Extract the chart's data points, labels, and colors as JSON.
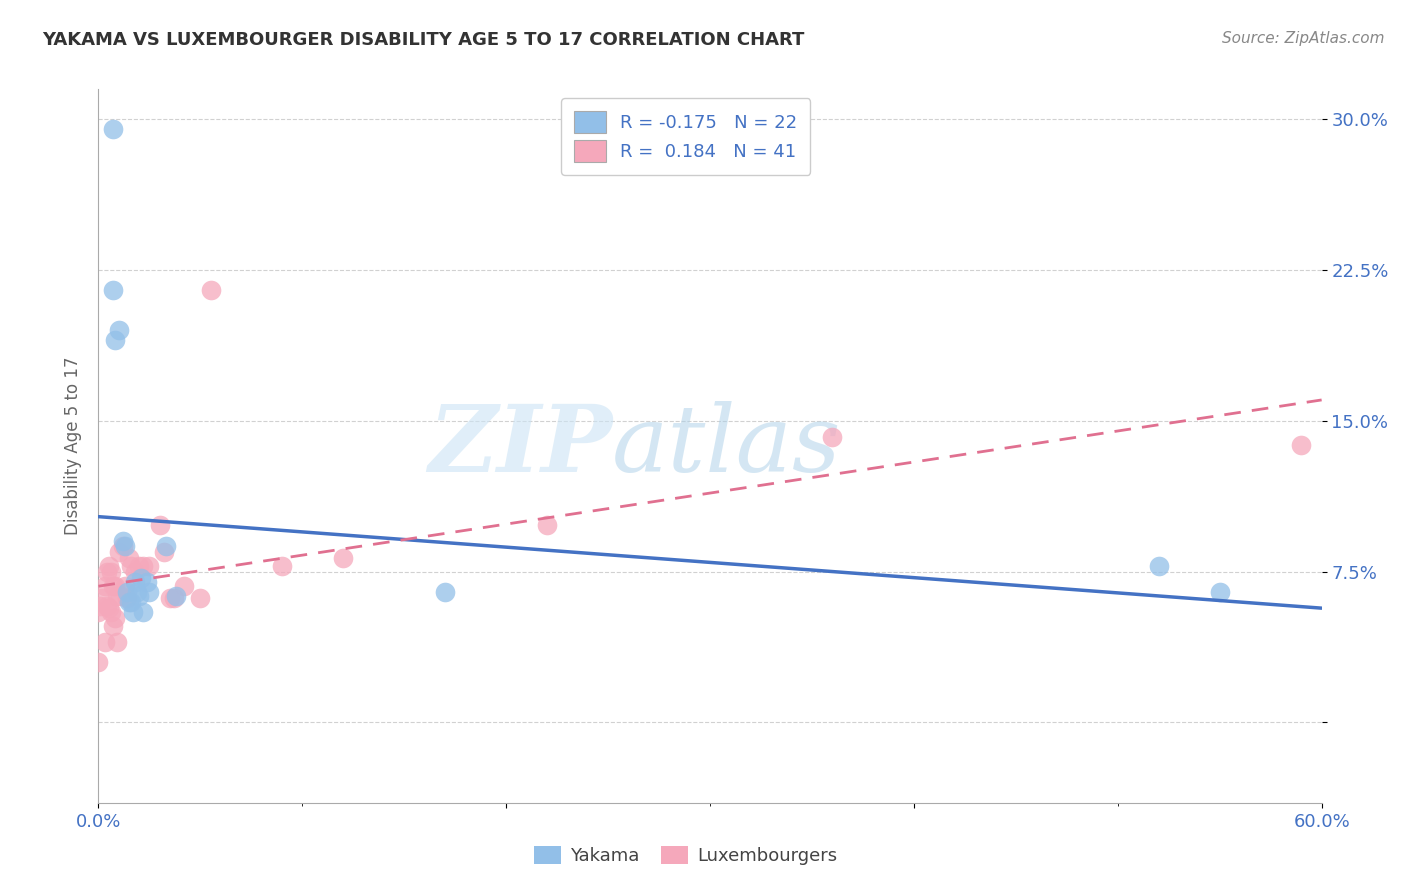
{
  "title": "YAKAMA VS LUXEMBOURGER DISABILITY AGE 5 TO 17 CORRELATION CHART",
  "source_text": "Source: ZipAtlas.com",
  "ylabel_label": "Disability Age 5 to 17",
  "xmin": 0.0,
  "xmax": 0.6,
  "ymin": -0.04,
  "ymax": 0.315,
  "yakama_R": -0.175,
  "yakama_N": 22,
  "luxembourger_R": 0.184,
  "luxembourger_N": 41,
  "yakama_color": "#92bfe8",
  "luxembourger_color": "#f5a8bb",
  "yakama_line_color": "#4472c4",
  "luxembourger_line_color": "#e07090",
  "yakama_x": [
    0.007,
    0.007,
    0.008,
    0.01,
    0.012,
    0.013,
    0.014,
    0.015,
    0.016,
    0.017,
    0.018,
    0.019,
    0.02,
    0.021,
    0.022,
    0.024,
    0.025,
    0.033,
    0.038,
    0.17,
    0.52,
    0.55
  ],
  "yakama_y": [
    0.295,
    0.215,
    0.19,
    0.195,
    0.09,
    0.088,
    0.065,
    0.06,
    0.06,
    0.055,
    0.07,
    0.065,
    0.063,
    0.072,
    0.055,
    0.07,
    0.065,
    0.088,
    0.063,
    0.065,
    0.078,
    0.065
  ],
  "luxembourger_x": [
    0.0,
    0.0,
    0.001,
    0.002,
    0.003,
    0.003,
    0.004,
    0.004,
    0.005,
    0.005,
    0.006,
    0.006,
    0.007,
    0.007,
    0.008,
    0.008,
    0.009,
    0.009,
    0.01,
    0.011,
    0.012,
    0.013,
    0.014,
    0.015,
    0.016,
    0.018,
    0.02,
    0.022,
    0.025,
    0.03,
    0.032,
    0.035,
    0.037,
    0.042,
    0.05,
    0.055,
    0.09,
    0.12,
    0.22,
    0.36,
    0.59
  ],
  "luxembourger_y": [
    0.055,
    0.03,
    0.058,
    0.062,
    0.068,
    0.04,
    0.075,
    0.058,
    0.078,
    0.057,
    0.075,
    0.055,
    0.068,
    0.048,
    0.068,
    0.052,
    0.063,
    0.04,
    0.085,
    0.063,
    0.088,
    0.068,
    0.062,
    0.082,
    0.078,
    0.075,
    0.078,
    0.078,
    0.078,
    0.098,
    0.085,
    0.062,
    0.062,
    0.068,
    0.062,
    0.215,
    0.078,
    0.082,
    0.098,
    0.142,
    0.138
  ],
  "ytick_vals": [
    0.0,
    0.075,
    0.15,
    0.225,
    0.3
  ],
  "ytick_labels": [
    "",
    "7.5%",
    "15.0%",
    "22.5%",
    "30.0%"
  ],
  "xtick_vals": [
    0.0,
    0.2,
    0.4,
    0.6
  ],
  "xtick_labels_bottom": [
    "0.0%",
    "",
    "",
    "60.0%"
  ],
  "watermark_zip": "ZIP",
  "watermark_atlas": "atlas",
  "legend_yakama": "Yakama",
  "legend_luxembourger": "Luxembourgers",
  "background_color": "#ffffff",
  "grid_color": "#cccccc"
}
